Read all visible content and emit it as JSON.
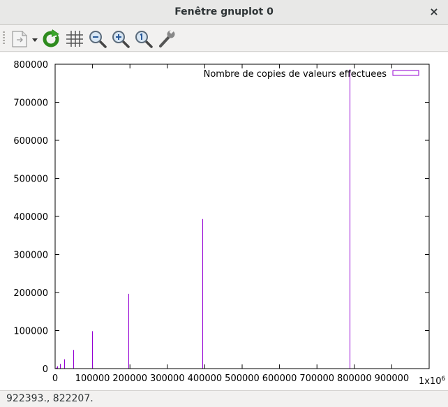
{
  "window": {
    "title": "Fenêtre gnuplot 0",
    "close_glyph": "×"
  },
  "toolbar": {
    "items": [
      {
        "name": "copy-to-clipboard-icon",
        "tooltip": ""
      },
      {
        "name": "replot-icon",
        "tooltip": ""
      },
      {
        "name": "grid-icon",
        "tooltip": ""
      },
      {
        "name": "zoom-out-icon",
        "tooltip": ""
      },
      {
        "name": "zoom-in-icon",
        "tooltip": ""
      },
      {
        "name": "zoom-reset-icon",
        "tooltip": ""
      },
      {
        "name": "settings-wrench-icon",
        "tooltip": ""
      }
    ]
  },
  "status": {
    "text": "922393.,  822207."
  },
  "chart_data": {
    "type": "bar",
    "title": "",
    "xlabel": "",
    "ylabel": "",
    "xlim": [
      0,
      1000000
    ],
    "ylim": [
      0,
      800000
    ],
    "x_multiplier_label_base": "1x10",
    "x_multiplier_label_exp": "6",
    "x_ticks": [
      0,
      100000,
      200000,
      300000,
      400000,
      500000,
      600000,
      700000,
      800000,
      900000
    ],
    "y_ticks": [
      0,
      100000,
      200000,
      300000,
      400000,
      500000,
      600000,
      700000,
      800000
    ],
    "legend": {
      "position": "top-right",
      "label": "Nombre de copies de valeurs effectuees"
    },
    "series": [
      {
        "name": "Nombre de copies de valeurs effectuees",
        "color": "#9400d3",
        "points": [
          {
            "x": 1536,
            "y": 1536
          },
          {
            "x": 3072,
            "y": 3072
          },
          {
            "x": 6144,
            "y": 6144
          },
          {
            "x": 12288,
            "y": 12288
          },
          {
            "x": 24576,
            "y": 24576
          },
          {
            "x": 49152,
            "y": 49152
          },
          {
            "x": 98304,
            "y": 98304
          },
          {
            "x": 196608,
            "y": 196608
          },
          {
            "x": 393216,
            "y": 393216
          },
          {
            "x": 786432,
            "y": 786432
          }
        ]
      }
    ]
  }
}
